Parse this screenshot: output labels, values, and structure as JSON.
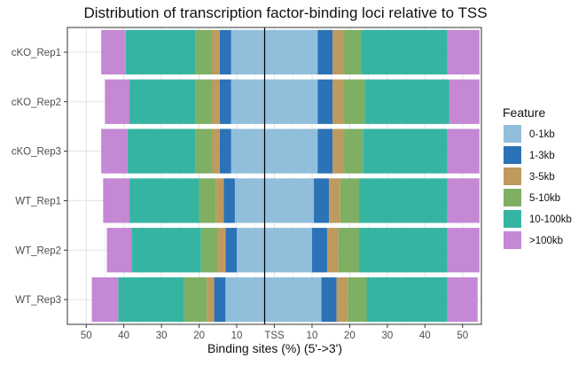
{
  "chart_data": {
    "type": "bar",
    "orientation": "horizontal",
    "stacked": true,
    "diverging": true,
    "title": "Distribution of transcription factor-binding loci relative to TSS",
    "xlabel": "Binding sites (%) (5'->3')",
    "ylabel": "",
    "xlim": [
      -55,
      55
    ],
    "xticks": [
      {
        "value": -50,
        "label": "50"
      },
      {
        "value": -40,
        "label": "40"
      },
      {
        "value": -30,
        "label": "30"
      },
      {
        "value": -20,
        "label": "20"
      },
      {
        "value": -10,
        "label": "10"
      },
      {
        "value": 0,
        "label": "TSS"
      },
      {
        "value": 10,
        "label": "10"
      },
      {
        "value": 20,
        "label": "20"
      },
      {
        "value": 30,
        "label": "30"
      },
      {
        "value": 40,
        "label": "40"
      },
      {
        "value": 50,
        "label": "50"
      }
    ],
    "grid": true,
    "legend_position": "right",
    "legend_title": "Feature",
    "categories": [
      "cKO_Rep1",
      "cKO_Rep2",
      "cKO_Rep3",
      "WT_Rep1",
      "WT_Rep2",
      "WT_Rep3"
    ],
    "series": [
      {
        "name": "0-1kb",
        "color": "#91BFDB",
        "upstream": [
          11.5,
          11.5,
          11.5,
          10.5,
          10,
          13
        ],
        "downstream": [
          11.5,
          11.5,
          11.5,
          10.5,
          10,
          12.5
        ]
      },
      {
        "name": "1-3kb",
        "color": "#2C72B6",
        "upstream": [
          3,
          3,
          3,
          3,
          3,
          3
        ],
        "downstream": [
          4,
          4,
          4,
          4,
          4,
          4
        ]
      },
      {
        "name": "3-5kb",
        "color": "#BF9A5E",
        "upstream": [
          2,
          2,
          2,
          2,
          2,
          2
        ],
        "downstream": [
          3,
          3,
          3,
          3,
          3,
          3
        ]
      },
      {
        "name": "5-10kb",
        "color": "#7FAF62",
        "upstream": [
          4.5,
          4.5,
          4.5,
          4.5,
          4.5,
          6
        ],
        "downstream": [
          4.5,
          5.5,
          5,
          5,
          5.5,
          5
        ]
      },
      {
        "name": "10-100kb",
        "color": "#36B4A2",
        "upstream": [
          18.5,
          17.5,
          18,
          18.5,
          18.5,
          17.5
        ],
        "downstream": [
          23,
          22.5,
          22.5,
          23.5,
          23.5,
          21.5
        ]
      },
      {
        "name": ">100kb",
        "color": "#C488D4",
        "upstream": [
          6.5,
          6.5,
          7,
          7,
          6.5,
          7
        ],
        "downstream": [
          8.5,
          8,
          8.5,
          8.5,
          8.5,
          8
        ]
      }
    ]
  }
}
